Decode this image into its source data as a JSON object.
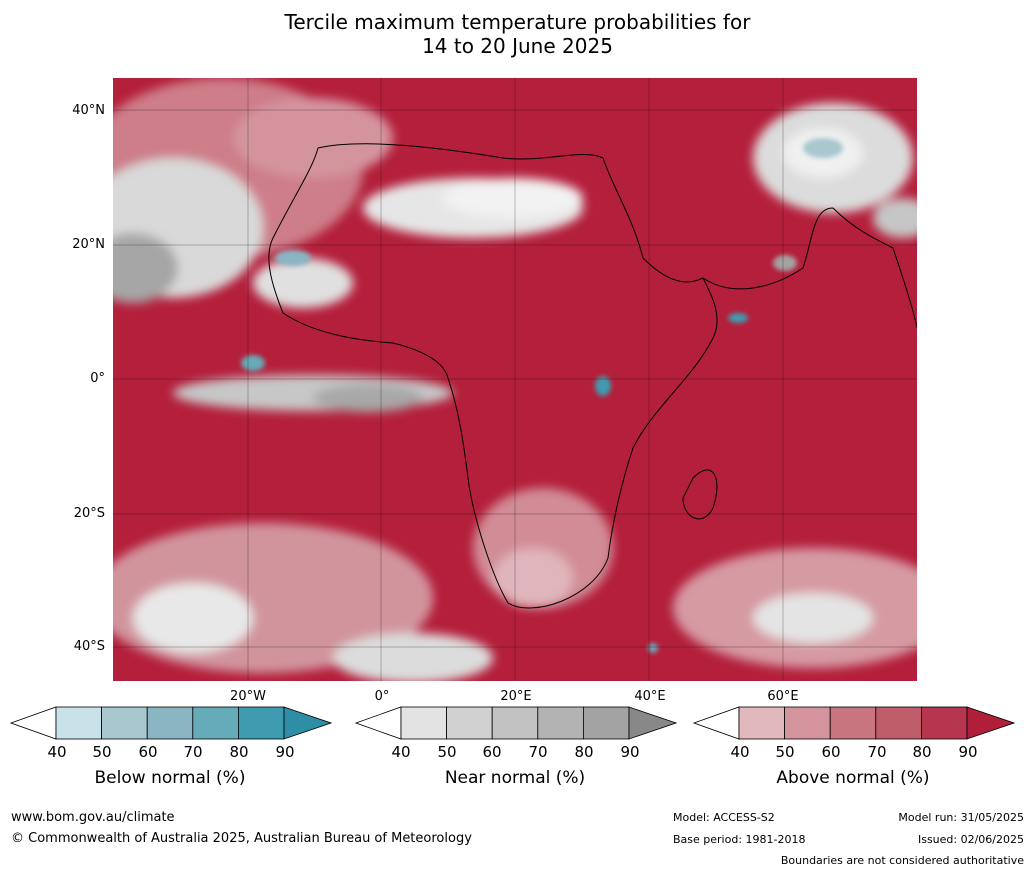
{
  "title_line1": "Tercile maximum temperature probabilities for",
  "title_line2": "14 to 20 June 2025",
  "lat_labels": [
    "40°N",
    "20°N",
    "0°",
    "20°S",
    "40°S"
  ],
  "lon_labels": [
    "20°W",
    "0°",
    "20°E",
    "40°E",
    "60°E"
  ],
  "colorbars": [
    {
      "label": "Below normal (%)",
      "ticks": [
        "40",
        "50",
        "60",
        "70",
        "80",
        "90"
      ],
      "colors": [
        "#ffffff",
        "#c9e1e8",
        "#a8c7cf",
        "#8ab5c3",
        "#66abb8",
        "#3f9bb0",
        "#2e8ea6"
      ]
    },
    {
      "label": "Near normal (%)",
      "ticks": [
        "40",
        "50",
        "60",
        "70",
        "80",
        "90"
      ],
      "colors": [
        "#ffffff",
        "#e3e3e3",
        "#d1d1d1",
        "#c2c2c2",
        "#b3b3b3",
        "#a3a3a3",
        "#888888"
      ]
    },
    {
      "label": "Above normal (%)",
      "ticks": [
        "40",
        "50",
        "60",
        "70",
        "80",
        "90"
      ],
      "colors": [
        "#ffffff",
        "#e1b8be",
        "#d4949e",
        "#c97580",
        "#be5c6a",
        "#b63650",
        "#b01e3a"
      ]
    }
  ],
  "footer": {
    "url": "www.bom.gov.au/climate",
    "copyright": "© Commonwealth of Australia 2025, Australian Bureau of Meteorology",
    "model": "Model: ACCESS-S2",
    "base_period": "Base period: 1981-2018",
    "model_run": "Model run: 31/05/2025",
    "issued": "Issued: 02/06/2025",
    "disclaimer": "Boundaries are not considered authoritative"
  }
}
